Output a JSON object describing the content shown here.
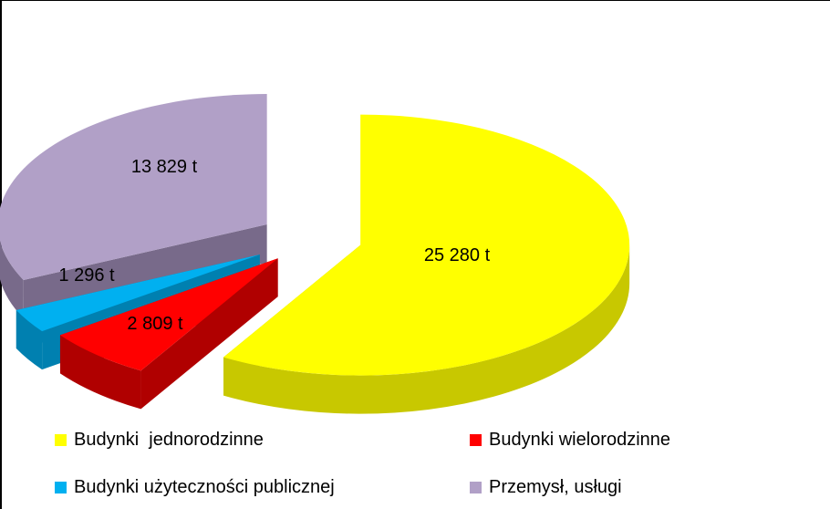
{
  "chart_data": {
    "type": "pie",
    "title": "",
    "unit": "t",
    "slices": [
      {
        "name": "Budynki  jednorodzinne",
        "value": 25280,
        "label": "25 280 t",
        "color": "#ffff00",
        "side": "#c8c800"
      },
      {
        "name": "Budynki wielorodzinne",
        "value": 2809,
        "label": "2 809  t",
        "color": "#ff0000",
        "side": "#b00000"
      },
      {
        "name": "Budynki użyteczności publicznej",
        "value": 1296,
        "label": "1 296  t",
        "color": "#00b0f0",
        "side": "#0080b0"
      },
      {
        "name": "Przemysł, usługi",
        "value": 13829,
        "label": "13 829  t",
        "color": "#b1a0c7",
        "side": "#786a8a"
      }
    ],
    "exploded": true,
    "three_d": true,
    "legend_placement": "bottom"
  }
}
